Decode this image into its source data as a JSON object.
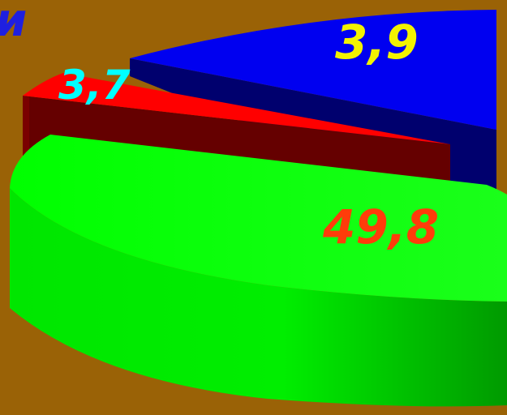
{
  "background_color": "#9a6206",
  "chart_data": {
    "type": "pie",
    "style": "3d-exploded",
    "title": "и",
    "title_color": "#1f1fe0",
    "slices": [
      {
        "label": "3,9",
        "value": 3.9,
        "color": "#0000f0",
        "side_color": "#00006e",
        "label_color": "#f2f200"
      },
      {
        "label": "3,7",
        "value": 3.7,
        "color": "#ff0000",
        "side_color": "#650000",
        "label_color": "#00ffff"
      },
      {
        "label": "49,8",
        "value": 49.8,
        "color": "#00ff00",
        "side_color": "#00c800",
        "label_color": "#ff3c0a"
      }
    ]
  }
}
